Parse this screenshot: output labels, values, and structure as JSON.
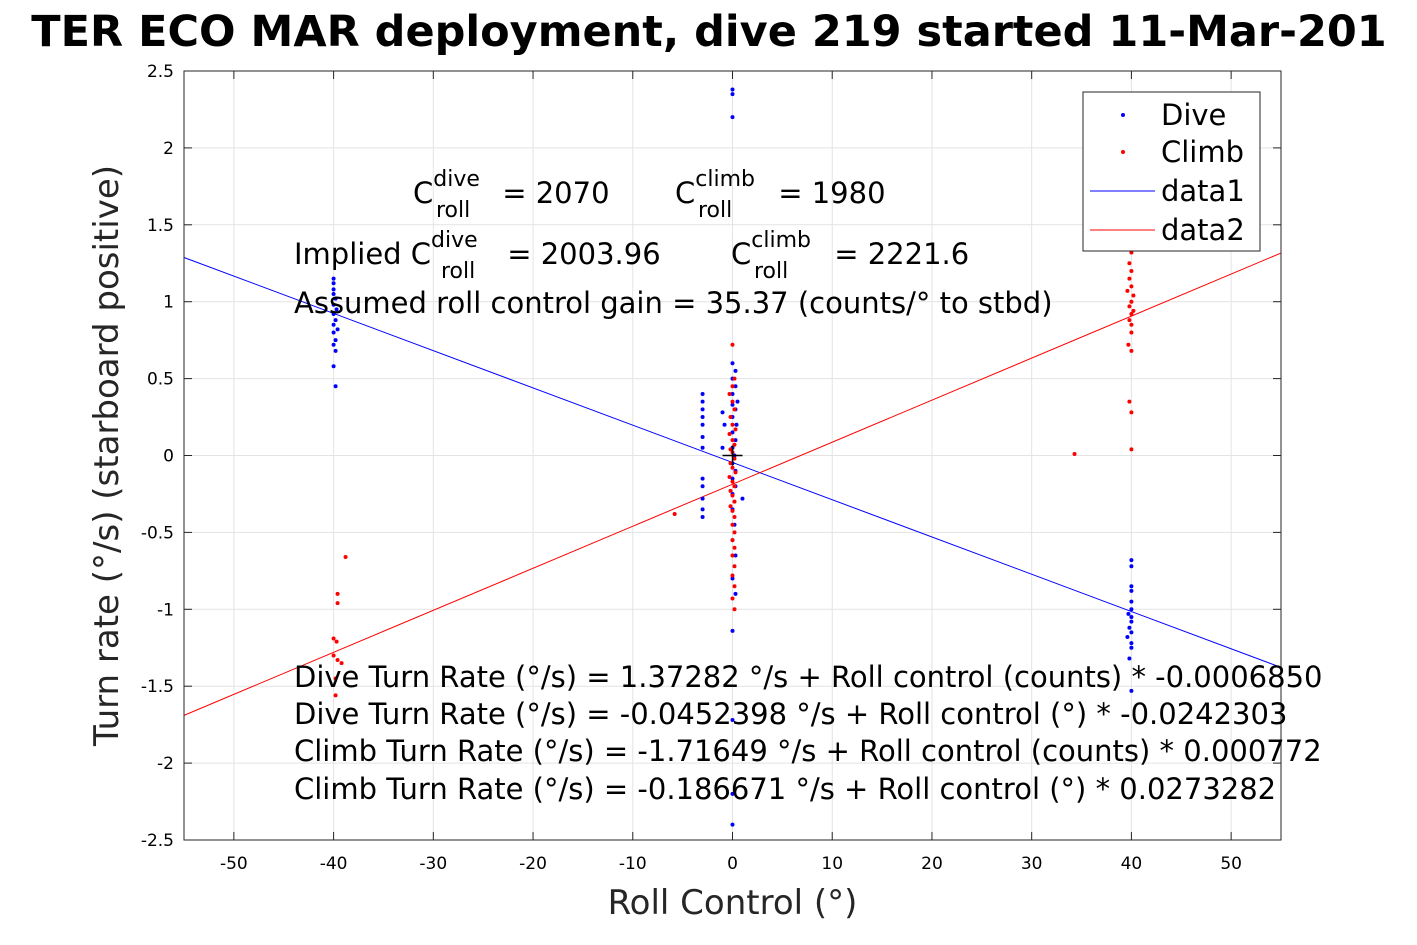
{
  "chart_data": {
    "type": "scatter",
    "title": "TER ECO MAR deployment, dive 219 started 11-Mar-201",
    "xlabel": "Roll Control (°)",
    "ylabel": "Turn rate (°/s) (starboard positive)",
    "xlim": [
      -55,
      55
    ],
    "ylim": [
      -2.5,
      2.5
    ],
    "xticks": [
      -50,
      -40,
      -30,
      -20,
      -10,
      0,
      10,
      20,
      30,
      40,
      50
    ],
    "yticks": [
      -2.5,
      -2,
      -1.5,
      -1,
      -0.5,
      0,
      0.5,
      1,
      1.5,
      2,
      2.5
    ],
    "xtick_labels": [
      "-50",
      "-40",
      "-30",
      "-20",
      "-10",
      "0",
      "10",
      "20",
      "30",
      "40",
      "50"
    ],
    "ytick_labels": [
      "-2.5",
      "-2",
      "-1.5",
      "-1",
      "-0.5",
      "0",
      "0.5",
      "1",
      "1.5",
      "2",
      "2.5"
    ],
    "grid": true,
    "legend_position": "top-right",
    "series": [
      {
        "name": "Dive",
        "kind": "points",
        "color": "#0000ff",
        "points": [
          [
            -40,
            1.15
          ],
          [
            -40,
            1.12
          ],
          [
            -40,
            1.08
          ],
          [
            -40,
            1.05
          ],
          [
            -39.8,
            1.02
          ],
          [
            -40,
            0.98
          ],
          [
            -39.7,
            0.95
          ],
          [
            -40,
            0.92
          ],
          [
            -39.8,
            0.88
          ],
          [
            -40,
            0.85
          ],
          [
            -39.6,
            0.82
          ],
          [
            -40,
            0.8
          ],
          [
            -39.8,
            0.75
          ],
          [
            -40,
            0.72
          ],
          [
            -39.8,
            0.68
          ],
          [
            -40,
            0.58
          ],
          [
            -39.8,
            0.45
          ],
          [
            0,
            2.38
          ],
          [
            0,
            2.35
          ],
          [
            0,
            2.2
          ],
          [
            -3,
            0.4
          ],
          [
            -3,
            0.35
          ],
          [
            -3,
            0.3
          ],
          [
            -3,
            0.25
          ],
          [
            -3,
            0.2
          ],
          [
            -3,
            0.12
          ],
          [
            -3,
            0.05
          ],
          [
            -3,
            -0.15
          ],
          [
            -3,
            -0.2
          ],
          [
            -3,
            -0.28
          ],
          [
            -3,
            -0.35
          ],
          [
            -3,
            -0.4
          ],
          [
            -1,
            0.28
          ],
          [
            -0.8,
            0.2
          ],
          [
            -1,
            0.05
          ],
          [
            0,
            0.6
          ],
          [
            0.3,
            0.55
          ],
          [
            0,
            0.5
          ],
          [
            0.3,
            0.45
          ],
          [
            0,
            0.4
          ],
          [
            0.5,
            0.35
          ],
          [
            0,
            0.33
          ],
          [
            0.3,
            0.3
          ],
          [
            0,
            0.25
          ],
          [
            0.4,
            0.2
          ],
          [
            0,
            0.15
          ],
          [
            0.3,
            0.1
          ],
          [
            0,
            0.05
          ],
          [
            0.2,
            0.0
          ],
          [
            0,
            -0.05
          ],
          [
            0.3,
            -0.1
          ],
          [
            0,
            -0.15
          ],
          [
            0.3,
            -0.2
          ],
          [
            0,
            -0.25
          ],
          [
            1,
            -0.28
          ],
          [
            0,
            -0.35
          ],
          [
            0.2,
            -0.45
          ],
          [
            0,
            -0.55
          ],
          [
            0.3,
            -0.65
          ],
          [
            0,
            -0.8
          ],
          [
            0.3,
            -0.9
          ],
          [
            0,
            -1.14
          ],
          [
            0,
            -1.72
          ],
          [
            0,
            -2.2
          ],
          [
            0,
            -2.4
          ],
          [
            40,
            -0.68
          ],
          [
            40,
            -0.72
          ],
          [
            40,
            -0.85
          ],
          [
            40,
            -0.88
          ],
          [
            40,
            -0.95
          ],
          [
            40,
            -1.0
          ],
          [
            39.7,
            -1.03
          ],
          [
            40,
            -1.05
          ],
          [
            40,
            -1.08
          ],
          [
            39.8,
            -1.12
          ],
          [
            40,
            -1.15
          ],
          [
            39.6,
            -1.18
          ],
          [
            40,
            -1.22
          ],
          [
            40,
            -1.25
          ],
          [
            39.8,
            -1.32
          ],
          [
            40,
            -1.53
          ]
        ]
      },
      {
        "name": "Climb",
        "kind": "points",
        "color": "#ff0000",
        "points": [
          [
            -38.8,
            -0.66
          ],
          [
            -39.6,
            -0.9
          ],
          [
            -39.6,
            -0.96
          ],
          [
            -40,
            -1.19
          ],
          [
            -39.7,
            -1.21
          ],
          [
            -40,
            -1.3
          ],
          [
            -39.6,
            -1.33
          ],
          [
            -39.2,
            -1.35
          ],
          [
            -39.8,
            -1.45
          ],
          [
            -39.8,
            -1.56
          ],
          [
            -5.8,
            -0.38
          ],
          [
            0,
            0.72
          ],
          [
            0.2,
            0.5
          ],
          [
            0,
            0.45
          ],
          [
            -0.3,
            0.4
          ],
          [
            0,
            0.35
          ],
          [
            0.2,
            0.3
          ],
          [
            -0.2,
            0.25
          ],
          [
            0,
            0.2
          ],
          [
            0.3,
            0.17
          ],
          [
            -0.3,
            0.14
          ],
          [
            0,
            0.1
          ],
          [
            0.2,
            0.07
          ],
          [
            -0.2,
            0.04
          ],
          [
            0,
            0.02
          ],
          [
            0.2,
            -0.02
          ],
          [
            -0.2,
            -0.05
          ],
          [
            0,
            -0.08
          ],
          [
            0.3,
            -0.11
          ],
          [
            -0.3,
            -0.14
          ],
          [
            0,
            -0.17
          ],
          [
            0.2,
            -0.2
          ],
          [
            -0.2,
            -0.23
          ],
          [
            0,
            -0.26
          ],
          [
            0.2,
            -0.3
          ],
          [
            -0.2,
            -0.33
          ],
          [
            0,
            -0.36
          ],
          [
            0.2,
            -0.4
          ],
          [
            0,
            -0.45
          ],
          [
            0.2,
            -0.5
          ],
          [
            0,
            -0.55
          ],
          [
            0.2,
            -0.6
          ],
          [
            0,
            -0.65
          ],
          [
            0.2,
            -0.72
          ],
          [
            0,
            -0.78
          ],
          [
            0.2,
            -0.85
          ],
          [
            0,
            -0.93
          ],
          [
            0.2,
            -1.0
          ],
          [
            34.3,
            0.01
          ],
          [
            40,
            1.32
          ],
          [
            39.8,
            1.25
          ],
          [
            40,
            1.2
          ],
          [
            39.8,
            1.15
          ],
          [
            40,
            1.1
          ],
          [
            39.6,
            1.07
          ],
          [
            40.2,
            1.04
          ],
          [
            40,
            1.0
          ],
          [
            39.8,
            0.97
          ],
          [
            40.2,
            0.94
          ],
          [
            40,
            0.92
          ],
          [
            39.8,
            0.88
          ],
          [
            40,
            0.85
          ],
          [
            40,
            0.8
          ],
          [
            39.7,
            0.72
          ],
          [
            40,
            0.68
          ],
          [
            39.8,
            0.35
          ],
          [
            40,
            0.28
          ],
          [
            40,
            0.04
          ]
        ]
      },
      {
        "name": "data1",
        "kind": "line",
        "color": "#0000ff",
        "slope": -0.0242303,
        "intercept": -0.0452398
      },
      {
        "name": "data2",
        "kind": "line",
        "color": "#ff0000",
        "slope": 0.0273282,
        "intercept": -0.186671
      }
    ],
    "origin_marker": {
      "x": 0,
      "y": 0,
      "symbol": "+",
      "color": "#000000"
    },
    "legend": {
      "entries": [
        {
          "label": "Dive",
          "style": "point",
          "color": "#0000ff"
        },
        {
          "label": "Climb",
          "style": "point",
          "color": "#ff0000"
        },
        {
          "label": "data1",
          "style": "line",
          "color": "#0000ff"
        },
        {
          "label": "data2",
          "style": "line",
          "color": "#ff0000"
        }
      ]
    },
    "annotations": {
      "croll_dive": {
        "symbol": "C",
        "sup": "dive",
        "sub": "roll",
        "value": " = 2070"
      },
      "croll_climb": {
        "symbol": "C",
        "sup": "climb",
        "sub": "roll",
        "value": " = 1980"
      },
      "implied_dive": {
        "prefix": "Implied C",
        "sup": "dive",
        "sub": "roll",
        "value": " = 2003.96"
      },
      "implied_climb": {
        "symbol": "C",
        "sup": "climb",
        "sub": "roll",
        "value": " = 2221.6"
      },
      "gain": "Assumed roll control gain = 35.37 (counts/° to stbd)",
      "fits": [
        "Dive Turn Rate (°/s) = 1.37282 °/s + Roll control (counts) * -0.0006850",
        "Dive Turn Rate (°/s) = -0.0452398 °/s + Roll control (°) * -0.0242303",
        "Climb Turn Rate (°/s) = -1.71649 °/s + Roll control (counts) * 0.000772",
        "Climb Turn Rate (°/s) = -0.186671 °/s + Roll control (°) * 0.0273282"
      ]
    }
  }
}
